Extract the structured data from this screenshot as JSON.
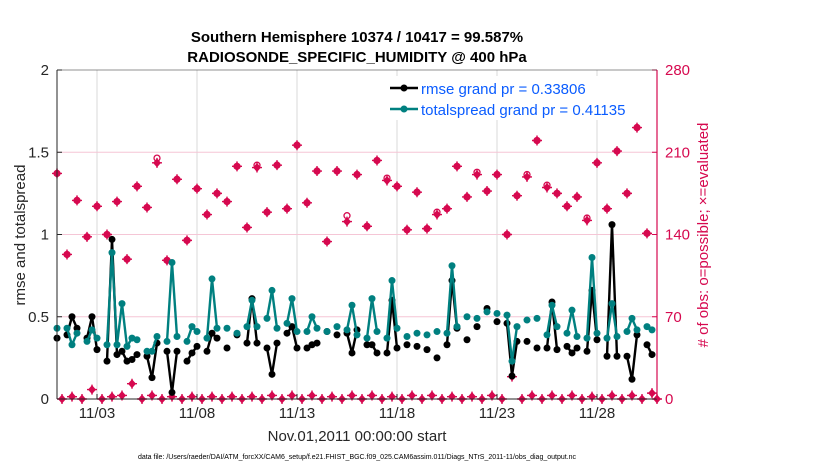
{
  "chart_data": {
    "type": "line",
    "title": [
      "Southern Hemisphere 10374 / 10417 = 99.587%",
      "RADIOSONDE_SPECIFIC_HUMIDITY @ 400 hPa"
    ],
    "xlabel": "Nov.01,2011 00:00:00 start",
    "ylabel": "rmse and totalspread",
    "y2label": "# of obs: o=possible; ×=evaluated",
    "xlim_days": [
      0,
      30
    ],
    "ylim": [
      0,
      2
    ],
    "y2lim": [
      0,
      280
    ],
    "x_ticks": [
      {
        "day": 2,
        "label": "11/03"
      },
      {
        "day": 7,
        "label": "11/08"
      },
      {
        "day": 12,
        "label": "11/13"
      },
      {
        "day": 17,
        "label": "11/18"
      },
      {
        "day": 22,
        "label": "11/23"
      },
      {
        "day": 27,
        "label": "11/28"
      }
    ],
    "y_ticks": [
      {
        "v": 0,
        "label": "0"
      },
      {
        "v": 0.5,
        "label": "0.5"
      },
      {
        "v": 1,
        "label": "1"
      },
      {
        "v": 1.5,
        "label": "1.5"
      },
      {
        "v": 2,
        "label": "2"
      }
    ],
    "y2_ticks": [
      {
        "v": 0,
        "label": "0"
      },
      {
        "v": 70,
        "label": "70"
      },
      {
        "v": 140,
        "label": "140"
      },
      {
        "v": 210,
        "label": "210"
      },
      {
        "v": 280,
        "label": "280"
      }
    ],
    "legend": {
      "placement": "top-right",
      "entries": [
        "rmse grand pr = 0.33806",
        "totalspread grand pr = 0.41135"
      ]
    },
    "colors": {
      "rmse": "#000000",
      "spread": "#008080",
      "obs": "#d6094f",
      "legend_text": "#0a5cff",
      "grid": "#d9d9d9",
      "grid_h": "#f5c6d6"
    },
    "series_idx6h": [
      0,
      2,
      3,
      4,
      6,
      7,
      8,
      10,
      11,
      12,
      13,
      14,
      15,
      16,
      18,
      19,
      20,
      22,
      23,
      24,
      26,
      27,
      28,
      30,
      31,
      32,
      34,
      36,
      38,
      39,
      40,
      42,
      43,
      44,
      46,
      47,
      48,
      50,
      51,
      52,
      54,
      56,
      58,
      59,
      60,
      62,
      63,
      64,
      66,
      67,
      68,
      70,
      72,
      74,
      76,
      78,
      79,
      80,
      82,
      84,
      86,
      88,
      90,
      91,
      92,
      94,
      96,
      98,
      99,
      100,
      102,
      103,
      104,
      106,
      107,
      108,
      110,
      111,
      112,
      114,
      115,
      116,
      118,
      119
    ],
    "rmse": [
      0.37,
      0.39,
      0.5,
      0.43,
      0.37,
      0.5,
      0.3,
      0.23,
      0.97,
      0.27,
      0.29,
      0.23,
      0.24,
      0.27,
      0.26,
      0.13,
      0.34,
      0.29,
      0.04,
      0.29,
      0.23,
      0.28,
      0.32,
      0.29,
      0.4,
      0.37,
      0.31,
      0.39,
      0.34,
      0.61,
      0.34,
      0.31,
      0.15,
      0.34,
      0.4,
      0.44,
      0.31,
      0.31,
      0.33,
      0.34,
      0.41,
      0.39,
      0.4,
      0.28,
      0.42,
      0.33,
      0.33,
      0.28,
      0.28,
      0.6,
      0.31,
      0.33,
      0.32,
      0.3,
      0.25,
      0.33,
      0.72,
      0.43,
      0.36,
      0.44,
      0.55,
      0.47,
      0.46,
      0.14,
      0.35,
      0.35,
      0.31,
      0.31,
      0.59,
      0.3,
      0.32,
      0.28,
      0.31,
      0.29,
      0.66,
      0.36,
      0.26,
      1.06,
      0.26,
      0.26,
      0.12,
      0.39,
      0.33,
      0.27
    ],
    "totalspread": [
      0.43,
      0.43,
      0.33,
      0.4,
      0.35,
      0.42,
      0.37,
      0.33,
      0.89,
      0.33,
      0.58,
      0.32,
      0.37,
      0.36,
      0.29,
      0.29,
      0.38,
      0.35,
      0.83,
      0.38,
      0.35,
      0.44,
      0.41,
      0.37,
      0.73,
      0.43,
      0.43,
      0.4,
      0.44,
      0.6,
      0.44,
      0.49,
      0.66,
      0.43,
      0.46,
      0.61,
      0.41,
      0.41,
      0.5,
      0.43,
      0.41,
      0.44,
      0.42,
      0.57,
      0.39,
      0.37,
      0.61,
      0.41,
      0.37,
      0.72,
      0.43,
      0.38,
      0.4,
      0.39,
      0.41,
      0.4,
      0.81,
      0.44,
      0.5,
      0.49,
      0.53,
      0.52,
      0.51,
      0.23,
      0.44,
      0.48,
      0.49,
      0.39,
      0.57,
      0.44,
      0.4,
      0.54,
      0.38,
      0.37,
      0.86,
      0.4,
      0.37,
      0.58,
      0.38,
      0.41,
      0.49,
      0.42,
      0.44,
      0.42
    ],
    "obs_00z_evaluated": [
      192,
      123,
      169,
      138,
      164,
      140,
      168,
      119,
      181,
      163,
      201,
      118,
      187,
      135,
      179,
      157,
      175,
      168,
      198,
      146,
      197,
      159,
      199,
      162,
      216,
      167,
      194,
      134,
      194,
      151,
      191,
      147,
      203,
      186,
      181,
      144,
      176,
      145,
      157,
      162,
      198,
      172,
      191,
      177,
      191,
      140,
      173,
      189,
      220,
      180,
      175,
      164,
      172,
      152,
      201,
      162,
      211,
      175,
      231,
      141
    ],
    "obs_00z_possible": [
      192,
      123,
      169,
      138,
      164,
      140,
      168,
      119,
      181,
      163,
      205,
      118,
      187,
      135,
      179,
      157,
      175,
      168,
      198,
      146,
      199,
      159,
      199,
      162,
      216,
      167,
      194,
      134,
      194,
      156,
      191,
      147,
      203,
      188,
      181,
      144,
      176,
      145,
      159,
      162,
      198,
      172,
      193,
      177,
      191,
      140,
      173,
      191,
      220,
      182,
      175,
      164,
      172,
      154,
      201,
      162,
      211,
      175,
      231,
      141
    ],
    "obs_12z": [
      0,
      2,
      0,
      8,
      0,
      2,
      3,
      13,
      0,
      3,
      0,
      2,
      0,
      2,
      0,
      2,
      0,
      2,
      0,
      2,
      0,
      3,
      0,
      3,
      0,
      3,
      0,
      2,
      0,
      3,
      0,
      3,
      0,
      2,
      0,
      3,
      0,
      3,
      0,
      2,
      0,
      2,
      0,
      3,
      0,
      19,
      0,
      3,
      0,
      3,
      0,
      3,
      0,
      2,
      0,
      3,
      0,
      3,
      0,
      5
    ]
  },
  "footnote": "data file: /Users/raeder/DAI/ATM_forcXX/CAM6_setup/f.e21.FHIST_BGC.f09_025.CAM6assim.011/Diags_NTrS_2011-11/obs_diag_output.nc"
}
